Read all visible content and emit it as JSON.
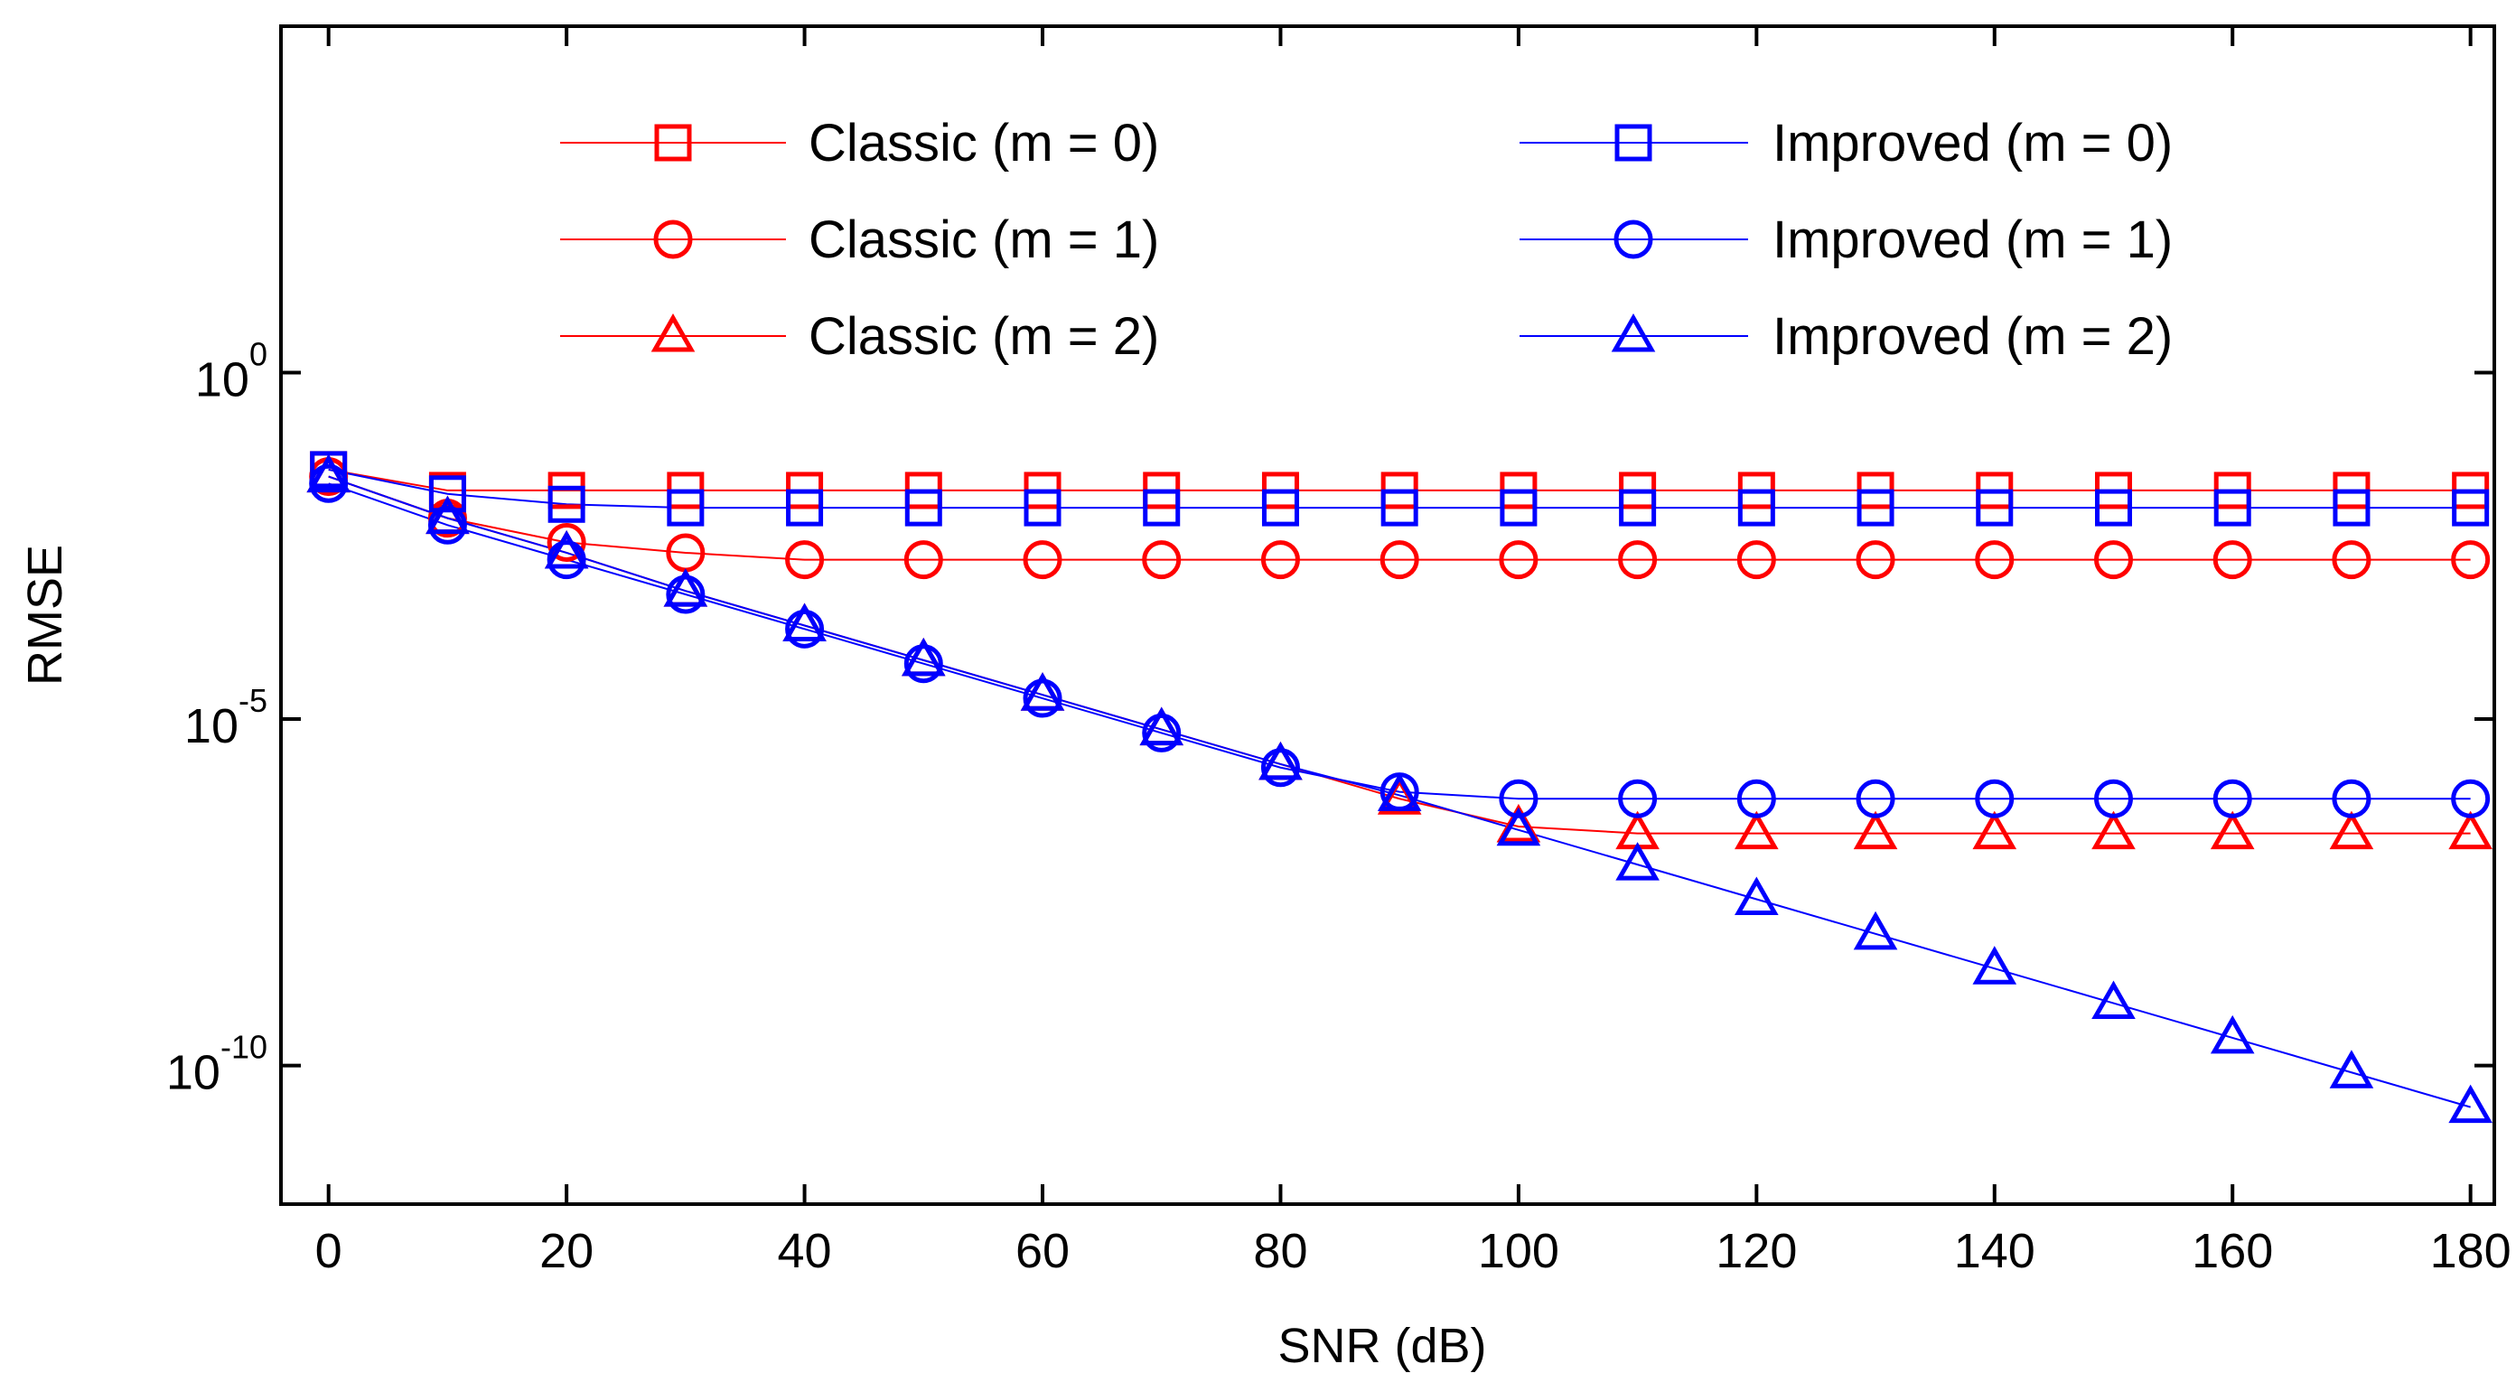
{
  "chart_data": {
    "type": "line",
    "xlabel": "SNR (dB)",
    "ylabel": "RMSE",
    "y_scale": "log",
    "xlim": [
      -4,
      182
    ],
    "ylim_log10": [
      -12,
      5
    ],
    "x_ticks": [
      0,
      20,
      40,
      60,
      80,
      100,
      120,
      140,
      160,
      180
    ],
    "y_ticks": [
      {
        "base": "10",
        "exp": "0",
        "log10": 0
      },
      {
        "base": "10",
        "exp": "-5",
        "log10": -5
      },
      {
        "base": "10",
        "exp": "-10",
        "log10": -10
      }
    ],
    "grid": false,
    "legend_position": "top",
    "x": [
      0,
      10,
      20,
      30,
      40,
      50,
      60,
      70,
      80,
      90,
      100,
      110,
      120,
      130,
      140,
      150,
      160,
      170,
      180
    ],
    "series": [
      {
        "name": "Classic (m = 0)",
        "color": "#ff0000",
        "marker": "square",
        "values_log10": [
          -1.4,
          -1.7,
          -1.7,
          -1.7,
          -1.7,
          -1.7,
          -1.7,
          -1.7,
          -1.7,
          -1.7,
          -1.7,
          -1.7,
          -1.7,
          -1.7,
          -1.7,
          -1.7,
          -1.7,
          -1.7,
          -1.7
        ]
      },
      {
        "name": "Classic (m = 1)",
        "color": "#ff0000",
        "marker": "circle",
        "values_log10": [
          -1.5,
          -2.1,
          -2.45,
          -2.6,
          -2.7,
          -2.7,
          -2.7,
          -2.7,
          -2.7,
          -2.7,
          -2.7,
          -2.7,
          -2.7,
          -2.7,
          -2.7,
          -2.7,
          -2.7,
          -2.7,
          -2.7
        ]
      },
      {
        "name": "Classic (m = 2)",
        "color": "#ff0000",
        "marker": "triangle",
        "values_log10": [
          -1.5,
          -2.1,
          -2.6,
          -3.15,
          -3.65,
          -4.15,
          -4.65,
          -5.15,
          -5.65,
          -6.15,
          -6.55,
          -6.65,
          -6.65,
          -6.65,
          -6.65,
          -6.65,
          -6.65,
          -6.65,
          -6.65
        ]
      },
      {
        "name": "Improved (m = 0)",
        "color": "#0000ff",
        "marker": "square",
        "values_log10": [
          -1.4,
          -1.75,
          -1.9,
          -1.95,
          -1.95,
          -1.95,
          -1.95,
          -1.95,
          -1.95,
          -1.95,
          -1.95,
          -1.95,
          -1.95,
          -1.95,
          -1.95,
          -1.95,
          -1.95,
          -1.95,
          -1.95
        ]
      },
      {
        "name": "Improved (m = 1)",
        "color": "#0000ff",
        "marker": "circle",
        "values_log10": [
          -1.6,
          -2.2,
          -2.7,
          -3.2,
          -3.7,
          -4.2,
          -4.7,
          -5.2,
          -5.7,
          -6.05,
          -6.15,
          -6.15,
          -6.15,
          -6.15,
          -6.15,
          -6.15,
          -6.15,
          -6.15,
          -6.15
        ]
      },
      {
        "name": "Improved (m = 2)",
        "color": "#0000ff",
        "marker": "triangle",
        "values_log10": [
          -1.5,
          -2.1,
          -2.6,
          -3.15,
          -3.65,
          -4.15,
          -4.65,
          -5.15,
          -5.65,
          -6.1,
          -6.6,
          -7.1,
          -7.6,
          -8.1,
          -8.6,
          -9.1,
          -9.6,
          -10.1,
          -10.6
        ]
      }
    ]
  }
}
